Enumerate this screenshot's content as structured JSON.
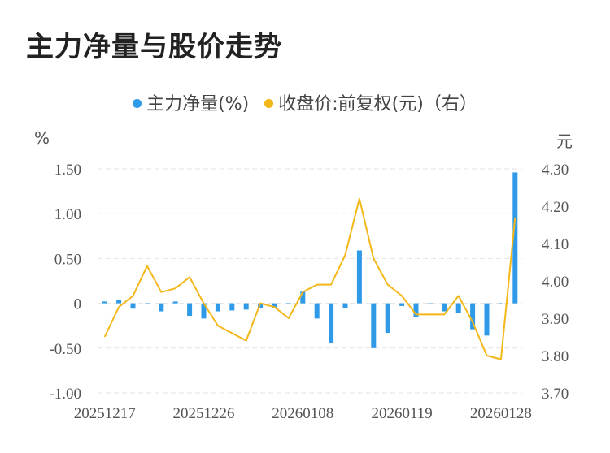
{
  "title": "主力净量与股价走势",
  "legend": {
    "series1": "主力净量(%)",
    "series2": "收盘价:前复权(元)（右）"
  },
  "units": {
    "left": "%",
    "right": "元"
  },
  "colors": {
    "bar": "#2f9ae8",
    "line": "#f3b719",
    "grid": "#e3e3e3"
  },
  "chart_data": {
    "type": "bar",
    "x_tick_labels": [
      "20251217",
      "20251226",
      "20260108",
      "20260119",
      "20260128"
    ],
    "x_tick_positions": [
      0,
      7,
      14,
      21,
      28
    ],
    "y_left": {
      "ticks": [
        "1.50",
        "1.00",
        "0.50",
        "0",
        "-0.50",
        "-1.00"
      ],
      "range": [
        -1.0,
        1.5
      ]
    },
    "y_right": {
      "ticks": [
        "4.30",
        "4.20",
        "4.10",
        "4.00",
        "3.90",
        "3.80",
        "3.70"
      ],
      "range": [
        3.7,
        4.3
      ]
    },
    "series": [
      {
        "name": "主力净量(%)",
        "type": "bar",
        "values": [
          0.02,
          0.04,
          -0.06,
          -0.01,
          -0.09,
          0.02,
          -0.14,
          -0.17,
          -0.09,
          -0.08,
          -0.07,
          -0.05,
          -0.05,
          0.0,
          0.13,
          -0.17,
          -0.44,
          -0.05,
          0.59,
          -0.5,
          -0.33,
          -0.03,
          -0.15,
          -0.01,
          -0.09,
          -0.11,
          -0.29,
          -0.36,
          -0.01,
          1.46
        ]
      },
      {
        "name": "收盘价:前复权(元)（右）",
        "type": "line",
        "values": [
          3.85,
          3.93,
          3.96,
          4.04,
          3.97,
          3.98,
          4.01,
          3.94,
          3.88,
          3.86,
          3.84,
          3.94,
          3.93,
          3.9,
          3.97,
          3.99,
          3.99,
          4.07,
          4.22,
          4.06,
          3.99,
          3.96,
          3.91,
          3.91,
          3.91,
          3.96,
          3.89,
          3.8,
          3.79,
          4.17
        ]
      }
    ]
  }
}
